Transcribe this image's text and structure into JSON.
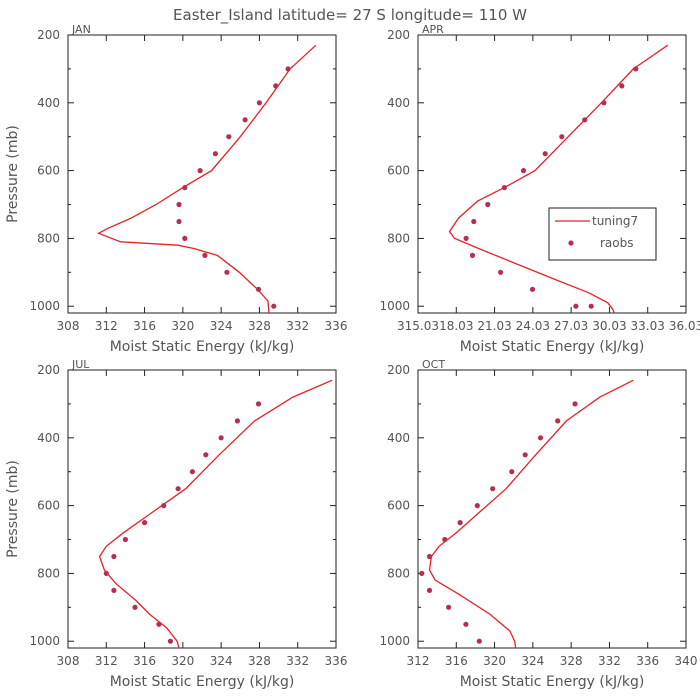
{
  "figure": {
    "title": "Easter_Island   latitude= 27 S longitude= 110 W"
  },
  "colors": {
    "model_line": "#e8202a",
    "obs_point": "#b5304f",
    "axis": "#222222",
    "text": "#555555"
  },
  "legend": {
    "model_label": "tuning7",
    "obs_label": "raobs",
    "placement": "right-middle of APR panel"
  },
  "chart_data": [
    {
      "type": "line",
      "panel": "JAN",
      "title": "JAN",
      "xlabel": "Moist Static Energy (kJ/kg)",
      "ylabel": "Pressure (mb)",
      "xlim": [
        308,
        336
      ],
      "ylim": [
        1020,
        200
      ],
      "x_tick_labels": [
        "308",
        "312",
        "316",
        "320",
        "324",
        "328",
        "332",
        "336"
      ],
      "y_tick_labels": [
        "200",
        "400",
        "600",
        "800",
        "1000"
      ],
      "series": [
        {
          "name": "tuning7",
          "style": "line",
          "x": [
            333.9,
            331.2,
            328.7,
            326.0,
            323.0,
            320.0,
            317.2,
            314.6,
            312.2,
            311.2,
            313.5,
            319.5,
            321.2,
            323.6,
            325.9,
            327.8,
            328.9,
            329.0
          ],
          "y": [
            230,
            300,
            400,
            500,
            600,
            650,
            700,
            740,
            770,
            785,
            810,
            820,
            830,
            850,
            900,
            950,
            985,
            1020
          ]
        },
        {
          "name": "raobs",
          "style": "scatter",
          "x": [
            331.0,
            329.7,
            328.0,
            326.5,
            324.8,
            323.4,
            321.8,
            320.2,
            319.6,
            319.6,
            320.2,
            322.3,
            324.6,
            327.9,
            329.5
          ],
          "y": [
            300,
            350,
            400,
            450,
            500,
            550,
            600,
            650,
            700,
            750,
            800,
            850,
            900,
            950,
            1000
          ]
        }
      ]
    },
    {
      "type": "line",
      "panel": "APR",
      "title": "APR",
      "xlabel": "Moist Static Energy (kJ/kg)",
      "ylabel": "",
      "xlim": [
        315.03,
        336.03
      ],
      "ylim": [
        1020,
        200
      ],
      "x_tick_labels": [
        "315.03",
        "18.03",
        "21.03",
        "24.03",
        "27.03",
        "30.03",
        "33.03",
        "36.03"
      ],
      "y_tick_labels": [
        "200",
        "400",
        "600",
        "800",
        "1000"
      ],
      "series": [
        {
          "name": "tuning7",
          "style": "line",
          "x": [
            334.6,
            331.9,
            329.4,
            326.8,
            324.2,
            321.8,
            319.7,
            318.2,
            317.5,
            317.9,
            319.8,
            322.4,
            325.7,
            328.4,
            329.9,
            330.3,
            330.4
          ],
          "y": [
            230,
            300,
            400,
            500,
            600,
            650,
            690,
            740,
            780,
            800,
            830,
            870,
            920,
            960,
            990,
            1010,
            1020
          ]
        },
        {
          "name": "raobs",
          "style": "scatter",
          "x": [
            332.1,
            331.0,
            329.6,
            328.1,
            326.3,
            325.0,
            323.3,
            321.8,
            320.5,
            319.4,
            318.8,
            319.3,
            321.5,
            324.0,
            327.4,
            328.6
          ],
          "y": [
            300,
            350,
            400,
            450,
            500,
            550,
            600,
            650,
            700,
            750,
            800,
            850,
            900,
            950,
            1000,
            1000
          ]
        }
      ]
    },
    {
      "type": "line",
      "panel": "JUL",
      "title": "JUL",
      "xlabel": "Moist Static Energy (kJ/kg)",
      "ylabel": "Pressure (mb)",
      "xlim": [
        308,
        336
      ],
      "ylim": [
        1020,
        200
      ],
      "x_tick_labels": [
        "308",
        "312",
        "316",
        "320",
        "324",
        "328",
        "332",
        "336"
      ],
      "y_tick_labels": [
        "200",
        "400",
        "600",
        "800",
        "1000"
      ],
      "series": [
        {
          "name": "tuning7",
          "style": "line",
          "x": [
            335.6,
            331.5,
            327.5,
            323.8,
            320.3,
            316.8,
            313.8,
            312.0,
            311.3,
            311.8,
            313.0,
            315.1,
            316.5,
            318.3,
            319.4,
            319.6
          ],
          "y": [
            230,
            280,
            350,
            450,
            550,
            620,
            680,
            720,
            750,
            790,
            830,
            880,
            920,
            960,
            1000,
            1020
          ]
        },
        {
          "name": "raobs",
          "style": "scatter",
          "x": [
            327.9,
            325.7,
            324.0,
            322.4,
            321.0,
            319.5,
            318.0,
            316.0,
            314.0,
            312.8,
            312.0,
            312.8,
            315.0,
            317.5,
            318.7
          ],
          "y": [
            300,
            350,
            400,
            450,
            500,
            550,
            600,
            650,
            700,
            750,
            800,
            850,
            900,
            950,
            1000
          ]
        }
      ]
    },
    {
      "type": "line",
      "panel": "OCT",
      "title": "OCT",
      "xlabel": "Moist Static Energy (kJ/kg)",
      "ylabel": "",
      "xlim": [
        312,
        340
      ],
      "ylim": [
        1020,
        200
      ],
      "x_tick_labels": [
        "312",
        "316",
        "320",
        "324",
        "328",
        "332",
        "336",
        "340"
      ],
      "y_tick_labels": [
        "200",
        "400",
        "600",
        "800",
        "1000"
      ],
      "series": [
        {
          "name": "tuning7",
          "style": "line",
          "x": [
            334.5,
            331.0,
            327.5,
            324.3,
            321.2,
            318.4,
            316.0,
            314.2,
            313.4,
            313.2,
            313.8,
            316.2,
            319.5,
            321.6,
            322.1,
            322.2
          ],
          "y": [
            230,
            280,
            350,
            450,
            550,
            620,
            680,
            720,
            750,
            790,
            820,
            860,
            920,
            970,
            1000,
            1020
          ]
        },
        {
          "name": "raobs",
          "style": "scatter",
          "x": [
            328.4,
            326.6,
            324.8,
            323.2,
            321.8,
            319.8,
            318.2,
            316.4,
            314.8,
            313.2,
            312.4,
            313.2,
            315.2,
            317.0,
            318.4
          ],
          "y": [
            300,
            350,
            400,
            450,
            500,
            550,
            600,
            650,
            700,
            750,
            800,
            850,
            900,
            950,
            1000
          ]
        }
      ]
    }
  ]
}
